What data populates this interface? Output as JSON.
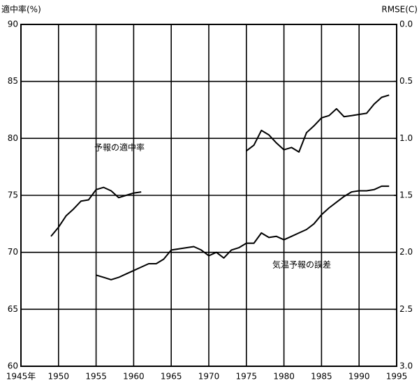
{
  "chart_data": {
    "type": "line",
    "ylabel": "適中率(%)",
    "y2label": "RMSE(C)",
    "x": [
      1949,
      1950,
      1951,
      1952,
      1953,
      1954,
      1955,
      1956,
      1957,
      1958,
      1959,
      1960,
      1961,
      1962,
      1963,
      1964,
      1965,
      1966,
      1967,
      1968,
      1969,
      1970,
      1971,
      1972,
      1973,
      1974,
      1975,
      1976,
      1977,
      1978,
      1979,
      1980,
      1981,
      1982,
      1983,
      1984,
      1985,
      1986,
      1987,
      1988,
      1989,
      1990,
      1991,
      1992,
      1993,
      1994
    ],
    "series": [
      {
        "color": "#000000",
        "values": [
          71.4,
          72.2,
          73.2,
          73.8,
          74.5,
          74.6,
          75.5,
          75.7,
          75.4,
          74.8,
          75.0,
          75.2,
          75.3,
          null,
          null,
          null,
          null,
          null,
          null,
          null,
          null,
          null,
          null,
          null,
          null,
          null,
          78.9,
          79.4,
          80.7,
          80.3,
          79.6,
          79.0,
          79.2,
          78.8,
          80.5,
          81.1,
          81.8,
          82.0,
          82.6,
          81.9,
          82.0,
          82.1,
          82.2,
          83.0,
          83.6,
          83.8
        ]
      },
      {
        "color": "#000000",
        "axis": "y2",
        "values": [
          null,
          null,
          null,
          null,
          null,
          null,
          2.2,
          2.22,
          2.24,
          2.22,
          2.19,
          2.16,
          2.13,
          2.1,
          2.1,
          2.06,
          1.98,
          1.97,
          1.96,
          1.95,
          1.98,
          2.03,
          2.0,
          2.05,
          1.98,
          1.96,
          1.92,
          1.92,
          1.83,
          1.87,
          1.86,
          1.89,
          1.86,
          1.83,
          1.8,
          1.75,
          1.67,
          1.61,
          1.56,
          1.51,
          1.47,
          1.46,
          1.46,
          1.45,
          1.42,
          1.42
        ]
      }
    ],
    "annotations": [
      {
        "text": "予報の適中率"
      },
      {
        "text": "気温予報の誤差"
      }
    ],
    "xlim": [
      1945,
      1995
    ],
    "xticks": [
      {
        "value": 1945,
        "label": "1945年"
      },
      1950,
      1955,
      1960,
      1965,
      1970,
      1975,
      1980,
      1985,
      1990,
      1995
    ],
    "ylim": [
      60,
      90
    ],
    "yticks": [
      60,
      65,
      70,
      75,
      80,
      85,
      90
    ],
    "y2lim": [
      3,
      0
    ],
    "y2ticks": [
      {
        "value": 0,
        "label": "0.0"
      },
      0.5,
      {
        "value": 1,
        "label": "1.0"
      },
      1.5,
      {
        "value": 2,
        "label": "2.0"
      },
      2.5,
      {
        "value": 3,
        "label": "3.0"
      }
    ],
    "grid": true
  }
}
